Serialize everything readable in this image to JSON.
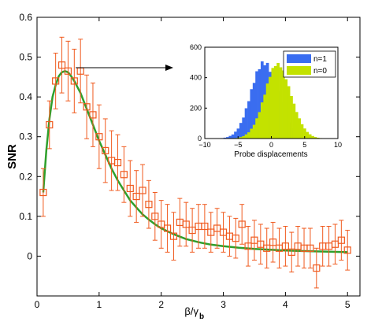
{
  "chart_data": [
    {
      "type": "scatter",
      "title": "",
      "xlabel": "β/γ",
      "xlabel_subscript": "b",
      "ylabel": "SNR",
      "xlim": [
        0,
        5.2
      ],
      "ylim": [
        -0.1,
        0.6
      ],
      "xticks": [
        "0",
        "1",
        "2",
        "3",
        "4",
        "5"
      ],
      "yticks": [
        "0",
        "0.1",
        "0.2",
        "0.3",
        "0.4",
        "0.5",
        "0.6"
      ],
      "grid": false,
      "colors": {
        "markers": "#f05a1e",
        "fit": "#2ea02c",
        "arrow": "#000000"
      },
      "series": [
        {
          "style": "markers-with-errorbars",
          "points": [
            [
              0.1,
              0.16,
              0.06
            ],
            [
              0.2,
              0.33,
              0.06
            ],
            [
              0.3,
              0.44,
              0.07
            ],
            [
              0.4,
              0.48,
              0.07
            ],
            [
              0.5,
              0.465,
              0.075
            ],
            [
              0.6,
              0.44,
              0.08
            ],
            [
              0.7,
              0.465,
              0.08
            ],
            [
              0.8,
              0.375,
              0.08
            ],
            [
              0.9,
              0.355,
              0.08
            ],
            [
              1.0,
              0.3,
              0.08
            ],
            [
              1.1,
              0.265,
              0.08
            ],
            [
              1.2,
              0.24,
              0.075
            ],
            [
              1.3,
              0.235,
              0.07
            ],
            [
              1.4,
              0.205,
              0.07
            ],
            [
              1.5,
              0.17,
              0.07
            ],
            [
              1.6,
              0.15,
              0.065
            ],
            [
              1.7,
              0.165,
              0.065
            ],
            [
              1.8,
              0.13,
              0.06
            ],
            [
              1.9,
              0.1,
              0.06
            ],
            [
              2.0,
              0.08,
              0.06
            ],
            [
              2.1,
              0.07,
              0.06
            ],
            [
              2.2,
              0.05,
              0.06
            ],
            [
              2.3,
              0.085,
              0.06
            ],
            [
              2.4,
              0.08,
              0.055
            ],
            [
              2.5,
              0.065,
              0.055
            ],
            [
              2.6,
              0.075,
              0.055
            ],
            [
              2.7,
              0.075,
              0.055
            ],
            [
              2.8,
              0.06,
              0.05
            ],
            [
              2.9,
              0.07,
              0.05
            ],
            [
              3.0,
              0.06,
              0.05
            ],
            [
              3.1,
              0.05,
              0.05
            ],
            [
              3.2,
              0.045,
              0.05
            ],
            [
              3.3,
              0.08,
              0.05
            ],
            [
              3.4,
              0.025,
              0.05
            ],
            [
              3.5,
              0.04,
              0.05
            ],
            [
              3.6,
              0.03,
              0.05
            ],
            [
              3.7,
              0.02,
              0.05
            ],
            [
              3.8,
              0.035,
              0.05
            ],
            [
              3.9,
              0.02,
              0.05
            ],
            [
              4.0,
              0.025,
              0.05
            ],
            [
              4.1,
              0.01,
              0.05
            ],
            [
              4.2,
              0.025,
              0.05
            ],
            [
              4.3,
              0.02,
              0.05
            ],
            [
              4.4,
              0.02,
              0.05
            ],
            [
              4.5,
              -0.03,
              0.05
            ],
            [
              4.6,
              0.025,
              0.05
            ],
            [
              4.7,
              0.025,
              0.05
            ],
            [
              4.8,
              0.03,
              0.05
            ],
            [
              4.9,
              0.04,
              0.05
            ],
            [
              5.0,
              0.015,
              0.05
            ]
          ]
        },
        {
          "style": "line",
          "x": [
            0.1,
            0.15,
            0.2,
            0.25,
            0.3,
            0.35,
            0.4,
            0.45,
            0.5,
            0.55,
            0.6,
            0.7,
            0.8,
            0.9,
            1.0,
            1.1,
            1.2,
            1.3,
            1.4,
            1.5,
            1.6,
            1.7,
            1.8,
            1.9,
            2.0,
            2.2,
            2.4,
            2.6,
            2.8,
            3.0,
            3.25,
            3.5,
            3.75,
            4.0,
            4.25,
            4.5,
            4.75,
            5.0
          ],
          "y": [
            0.16,
            0.265,
            0.345,
            0.4,
            0.43,
            0.452,
            0.462,
            0.465,
            0.462,
            0.452,
            0.44,
            0.41,
            0.37,
            0.33,
            0.29,
            0.255,
            0.22,
            0.19,
            0.165,
            0.14,
            0.122,
            0.105,
            0.092,
            0.08,
            0.07,
            0.055,
            0.043,
            0.035,
            0.029,
            0.025,
            0.021,
            0.018,
            0.016,
            0.014,
            0.013,
            0.012,
            0.011,
            0.01
          ]
        }
      ]
    },
    {
      "type": "histogram",
      "xlabel": "Probe displacements",
      "ylabel": "",
      "xlim": [
        -10,
        10
      ],
      "ylim": [
        0,
        600
      ],
      "xticks": [
        "−10",
        "−5",
        "0",
        "5",
        "10"
      ],
      "yticks": [
        "0",
        "200",
        "400",
        "600"
      ],
      "legend": "top-right",
      "bin_width": 0.4,
      "series": [
        {
          "name": "n=1",
          "color": "#3a6df0",
          "mean": -1,
          "sigma": 2,
          "peak": 505
        },
        {
          "name": "n=0",
          "color": "#c3e200",
          "mean": 1,
          "sigma": 2,
          "peak": 480
        }
      ]
    }
  ]
}
